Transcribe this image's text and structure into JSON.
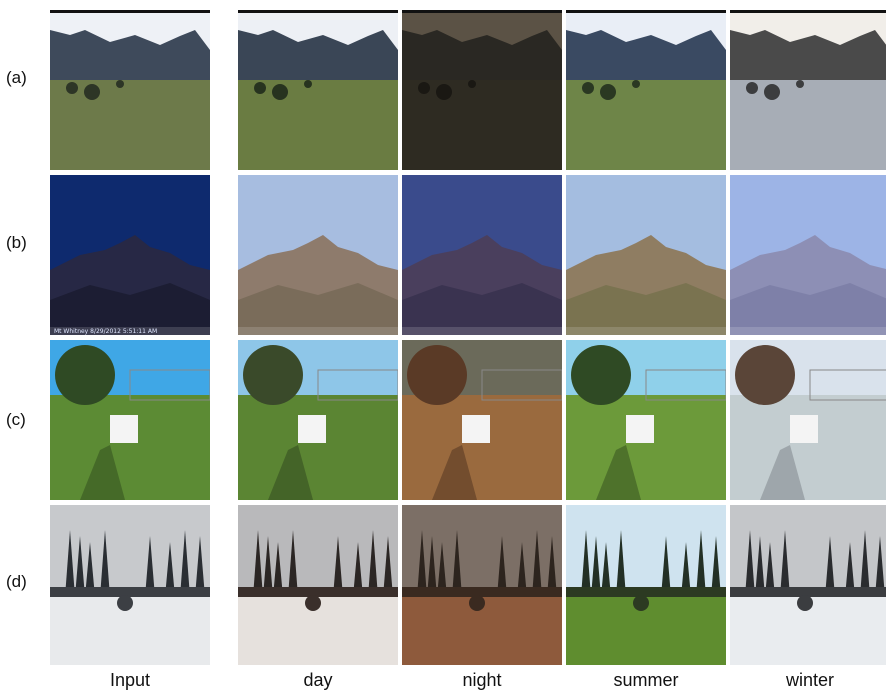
{
  "figure": {
    "row_labels": [
      "(a)",
      "(b)",
      "(c)",
      "(d)"
    ],
    "column_labels": [
      "Input",
      "day",
      "night",
      "summer",
      "winter"
    ],
    "overlay_caption_input": "Mt Whitney  8/29/2012 5:51:11 AM"
  },
  "panels": [
    {
      "row": "(a)",
      "col": "Input",
      "scene": "meadow",
      "palette": {
        "sky": "#eef1f6",
        "mountain": "#3e4a5b",
        "ground": "#6d7a4a",
        "dark": "#2d3526"
      }
    },
    {
      "row": "(a)",
      "col": "day",
      "scene": "meadow",
      "palette": {
        "sky": "#edf0f5",
        "mountain": "#3a4656",
        "ground": "#6a7c42",
        "dark": "#27331f"
      }
    },
    {
      "row": "(a)",
      "col": "night",
      "scene": "meadow",
      "palette": {
        "sky": "#5b5245",
        "mountain": "#2a2823",
        "ground": "#2e2b22",
        "dark": "#1a1813"
      }
    },
    {
      "row": "(a)",
      "col": "summer",
      "scene": "meadow",
      "palette": {
        "sky": "#e9eef6",
        "mountain": "#3a4a62",
        "ground": "#6e8548",
        "dark": "#2a3822"
      }
    },
    {
      "row": "(a)",
      "col": "winter",
      "scene": "meadow",
      "palette": {
        "sky": "#f1eee9",
        "mountain": "#4a4a4a",
        "ground": "#a7adb6",
        "dark": "#3c3d3f"
      }
    },
    {
      "row": "(b)",
      "col": "Input",
      "scene": "peak",
      "palette": {
        "sky": "#0e2a6e",
        "mountain": "#272845",
        "ground": "#1c1d33",
        "dark": "#14152a"
      }
    },
    {
      "row": "(b)",
      "col": "day",
      "scene": "peak",
      "palette": {
        "sky": "#a7bde0",
        "mountain": "#8e7b6c",
        "ground": "#7a6c5a",
        "dark": "#5d5444"
      }
    },
    {
      "row": "(b)",
      "col": "night",
      "scene": "peak",
      "palette": {
        "sky": "#3a4b8c",
        "mountain": "#4a3f5d",
        "ground": "#3a3350",
        "dark": "#2a2540"
      }
    },
    {
      "row": "(b)",
      "col": "summer",
      "scene": "peak",
      "palette": {
        "sky": "#a4bde0",
        "mountain": "#8f7d62",
        "ground": "#7a7350",
        "dark": "#5a5a3e"
      }
    },
    {
      "row": "(b)",
      "col": "winter",
      "scene": "peak",
      "palette": {
        "sky": "#9db4e6",
        "mountain": "#8d8fb5",
        "ground": "#7e80a8",
        "dark": "#5f6287"
      }
    },
    {
      "row": "(c)",
      "col": "Input",
      "scene": "yard",
      "palette": {
        "sky": "#3fa7e6",
        "mountain": "#2f4a24",
        "ground": "#5c8b34",
        "dark": "#2e4a1c"
      }
    },
    {
      "row": "(c)",
      "col": "day",
      "scene": "yard",
      "palette": {
        "sky": "#8ec6e8",
        "mountain": "#3a4a2a",
        "ground": "#5b8533",
        "dark": "#2d431d"
      }
    },
    {
      "row": "(c)",
      "col": "night",
      "scene": "yard",
      "palette": {
        "sky": "#6b6a5a",
        "mountain": "#5a3a26",
        "ground": "#9a6a3e",
        "dark": "#4c2f1e"
      }
    },
    {
      "row": "(c)",
      "col": "summer",
      "scene": "yard",
      "palette": {
        "sky": "#8fd0ea",
        "mountain": "#2f4a24",
        "ground": "#6c9a3a",
        "dark": "#2f4a1c"
      }
    },
    {
      "row": "(c)",
      "col": "winter",
      "scene": "yard",
      "palette": {
        "sky": "#d9e2ec",
        "mountain": "#5a4538",
        "ground": "#c3cdd0",
        "dark": "#7a7f85"
      }
    },
    {
      "row": "(d)",
      "col": "Input",
      "scene": "snowy",
      "palette": {
        "sky": "#c7c9cc",
        "mountain": "#2a2e33",
        "ground": "#e8eaec",
        "dark": "#3c3f44"
      }
    },
    {
      "row": "(d)",
      "col": "day",
      "scene": "snowy",
      "palette": {
        "sky": "#b9b9bb",
        "mountain": "#2b2624",
        "ground": "#e6e1dd",
        "dark": "#3a2f2b"
      }
    },
    {
      "row": "(d)",
      "col": "night",
      "scene": "snowy",
      "palette": {
        "sky": "#7c6f66",
        "mountain": "#2d241e",
        "ground": "#8e5a3c",
        "dark": "#3a2a20"
      }
    },
    {
      "row": "(d)",
      "col": "summer",
      "scene": "snowy",
      "palette": {
        "sky": "#cfe3ef",
        "mountain": "#233025",
        "ground": "#5f8d2f",
        "dark": "#2c3a22"
      }
    },
    {
      "row": "(d)",
      "col": "winter",
      "scene": "snowy",
      "palette": {
        "sky": "#c4c6c9",
        "mountain": "#2a2c2f",
        "ground": "#e9ecef",
        "dark": "#3b3d40"
      }
    }
  ]
}
